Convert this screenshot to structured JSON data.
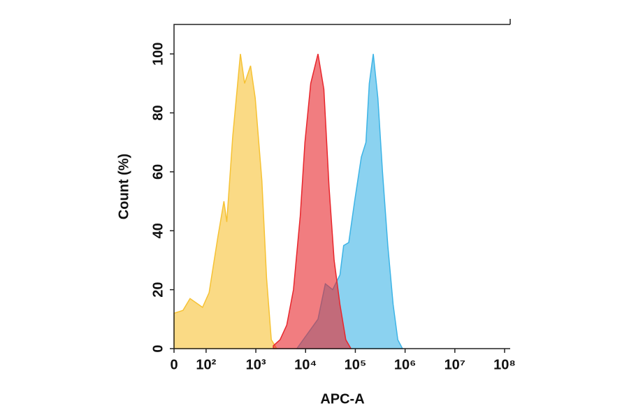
{
  "chart_data": {
    "type": "area",
    "xlabel": "APC-A",
    "ylabel": "Count  (%)",
    "xscale": "biexponential",
    "xlim": [
      0,
      100000000
    ],
    "xticks": [
      0,
      {
        "value": 100,
        "label": "10²"
      },
      {
        "value": 1000,
        "label": "10³"
      },
      {
        "value": 10000,
        "label": "10⁴"
      },
      {
        "value": 100000,
        "label": "10⁵"
      },
      {
        "value": 1000000,
        "label": "10⁶"
      },
      {
        "value": 10000000,
        "label": "10⁷"
      },
      {
        "value": 100000000,
        "label": "10⁸"
      }
    ],
    "ylim": [
      0,
      110
    ],
    "yticks": [
      0,
      20,
      40,
      60,
      80,
      100
    ],
    "series": [
      {
        "color": "#f6c234",
        "x": [
          0,
          28,
          50,
          89,
          115,
          173,
          228,
          261,
          343,
          490,
          594,
          782,
          973,
          1323,
          1644,
          2046,
          2624
        ],
        "values": [
          12,
          13,
          17,
          14,
          19,
          38,
          50,
          43,
          72,
          100,
          90,
          96,
          85,
          57,
          24,
          3,
          0
        ]
      },
      {
        "color": "#3db4e6",
        "x": [
          6670,
          17780,
          24950,
          35000,
          49100,
          58200,
          73800,
          96700,
          131800,
          163400,
          190500,
          229000,
          284000,
          352000,
          450000,
          575000,
          713000,
          885000
        ],
        "values": [
          0,
          10,
          22,
          20,
          25,
          35,
          36,
          50,
          65,
          70,
          90,
          100,
          85,
          60,
          35,
          15,
          3,
          0
        ]
      },
      {
        "color": "#e8262c",
        "x": [
          2245,
          3064,
          4185,
          5712,
          7798,
          9686,
          12670,
          17780,
          23330,
          29560,
          37500,
          49100,
          64400,
          81700
        ],
        "values": [
          1,
          3,
          8,
          20,
          45,
          70,
          90,
          100,
          88,
          55,
          30,
          15,
          3,
          0
        ]
      }
    ]
  }
}
